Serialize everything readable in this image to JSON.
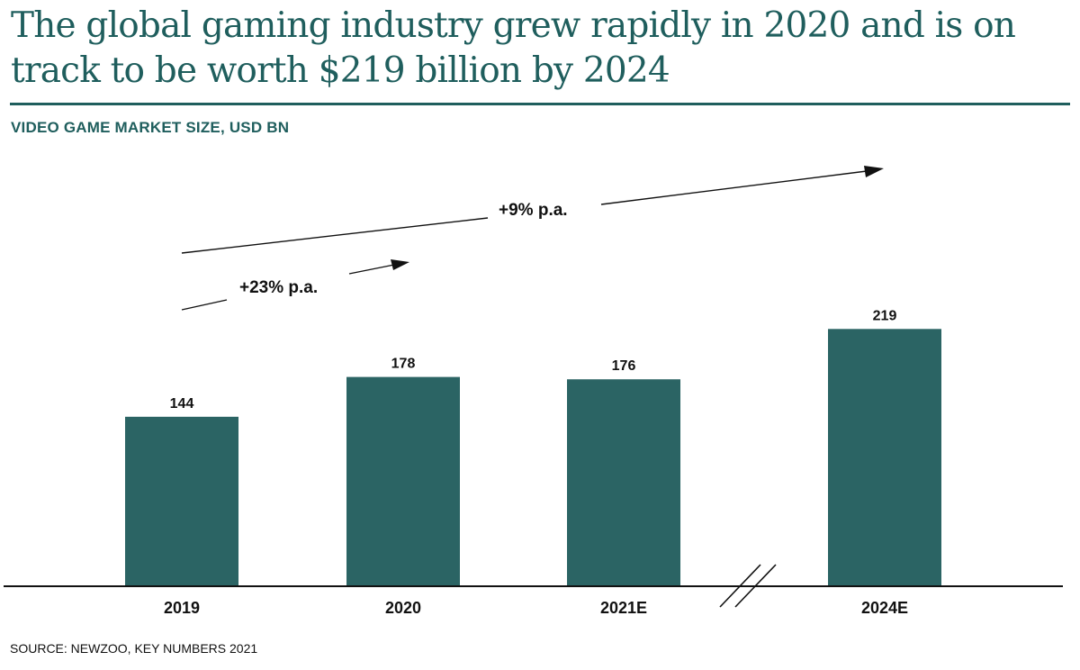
{
  "header": {
    "title": "The global gaming industry grew rapidly in 2020 and is on track to be worth $219 billion by 2024",
    "subtitle": "VIDEO GAME MARKET SIZE, USD BN"
  },
  "footer": {
    "source": "SOURCE: NEWZOO, KEY NUMBERS 2021"
  },
  "colors": {
    "accent": "#1f5e5d",
    "bar": "#2b6464",
    "text": "#111111"
  },
  "chart_data": {
    "type": "bar",
    "title": "VIDEO GAME MARKET SIZE, USD BN",
    "xlabel": "",
    "ylabel": "USD BN",
    "categories": [
      "2019",
      "2020",
      "2021E",
      "2024E"
    ],
    "values": [
      144,
      178,
      176,
      219
    ],
    "data_labels": [
      "144",
      "178",
      "176",
      "219"
    ],
    "ylim": [
      0,
      300
    ],
    "grid": false,
    "legend": "none",
    "axis_break": {
      "between": [
        "2021E",
        "2024E"
      ]
    },
    "annotations": [
      {
        "text": "+23% p.a.",
        "from": "2019",
        "to": "2020",
        "type": "arrow"
      },
      {
        "text": "+9% p.a.",
        "from": "2019",
        "to": "2024E",
        "type": "arrow"
      }
    ]
  }
}
